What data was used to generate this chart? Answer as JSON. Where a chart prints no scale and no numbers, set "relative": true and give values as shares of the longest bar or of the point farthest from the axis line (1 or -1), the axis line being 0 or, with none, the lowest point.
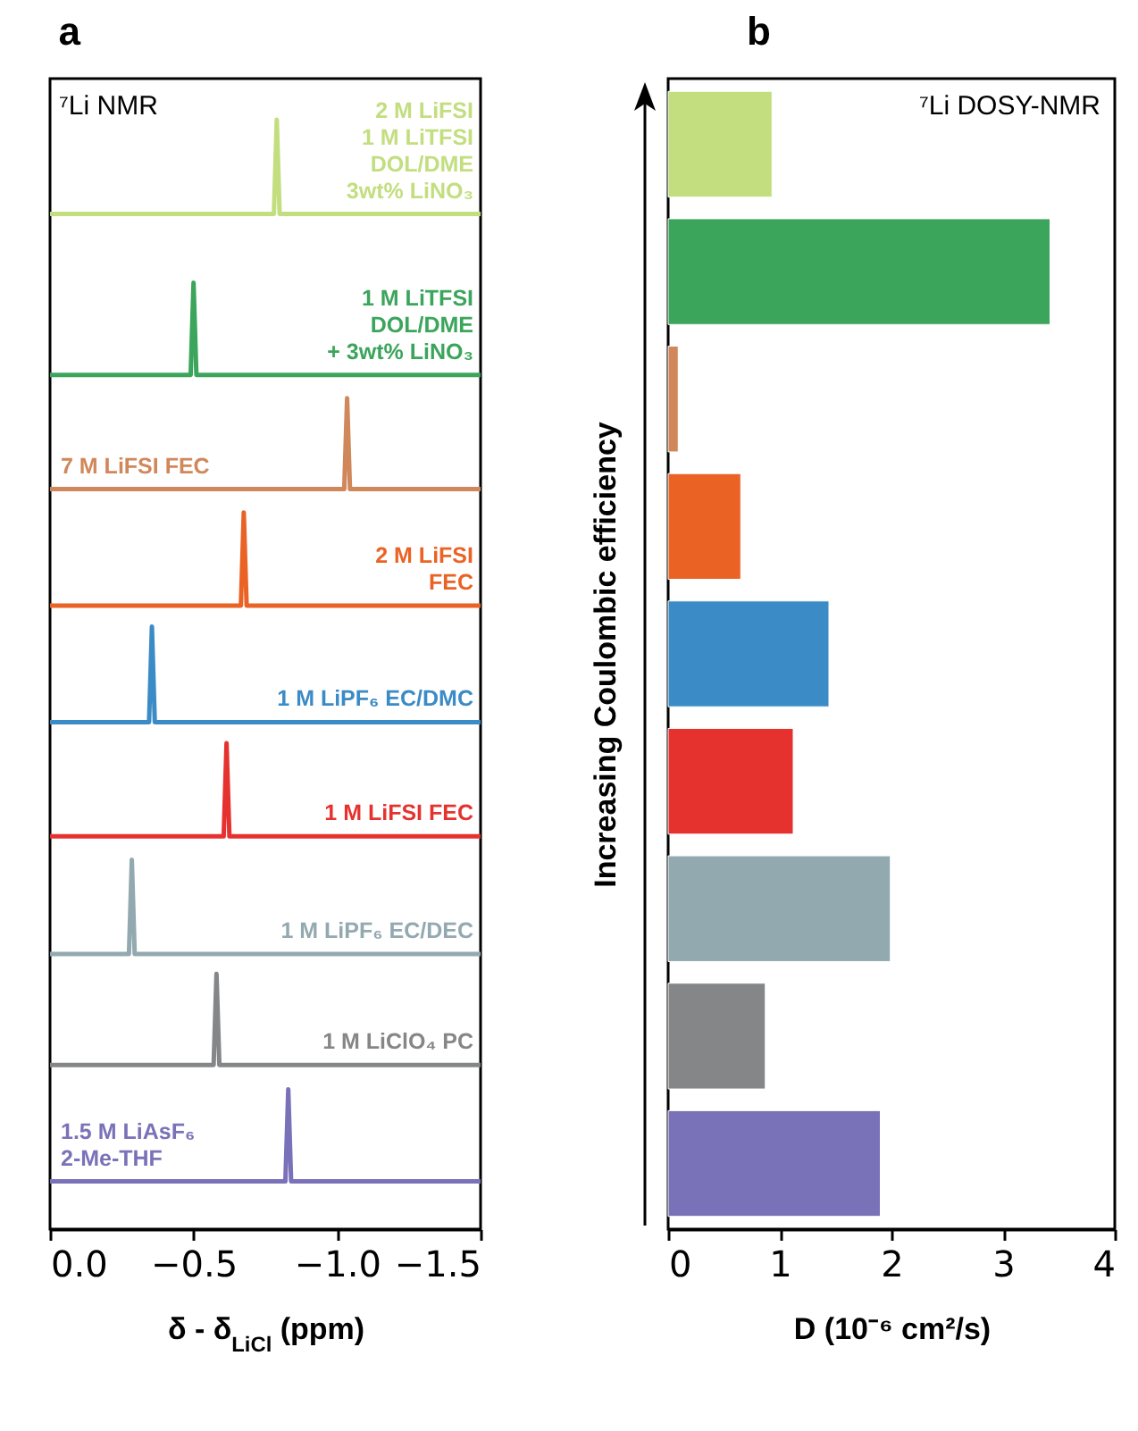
{
  "chart_data": [
    {
      "type": "line",
      "title": "a",
      "xlabel": "δ - δ$_{LiCl}$ (ppm)",
      "relative": true,
      "tick_labels": "x",
      "annotations": [
        "⁷Li NMR"
      ],
      "xlim": [
        0,
        -1.5
      ],
      "xticks": [
        {
          "value": 0,
          "label": "0.0"
        },
        {
          "value": -0.5,
          "label": "−0.5"
        },
        {
          "value": -1,
          "label": "−1.0"
        },
        {
          "value": -1.5,
          "label": "−1.5"
        }
      ],
      "series": [
        {
          "name": "2 M LiFSI\n1 M LiTFSI\nDOL/DME\n3wt% LiNO₃",
          "color": "#c3de7f",
          "x": [
            0,
            -0.78,
            -0.79,
            -0.8,
            -1.5
          ],
          "values": [
            0.915,
            0.915,
            1.0,
            0.915,
            0.915
          ]
        },
        {
          "name": "1 M LiTFSI\nDOL/DME\n+ 3wt% LiNO₃",
          "color": "#3ba55c",
          "x": [
            0,
            -0.49,
            -0.5,
            -0.51,
            -1.5
          ],
          "values": [
            0.77,
            0.77,
            0.853,
            0.77,
            0.77
          ]
        },
        {
          "name": "7 M LiFSI FEC",
          "color": "#d0875a",
          "x": [
            0,
            -1.025,
            -1.035,
            -1.045,
            -1.5
          ],
          "values": [
            0.667,
            0.667,
            0.749,
            0.667,
            0.667
          ]
        },
        {
          "name": "2 M LiFSI\nFEC",
          "color": "#ea6325",
          "x": [
            0,
            -0.665,
            -0.675,
            -0.685,
            -1.5
          ],
          "values": [
            0.562,
            0.562,
            0.646,
            0.562,
            0.562
          ]
        },
        {
          "name": "1 M LiPF₆ EC/DMC",
          "color": "#3a8bc6",
          "x": [
            0,
            -0.345,
            -0.355,
            -0.365,
            -1.5
          ],
          "values": [
            0.457,
            0.457,
            0.543,
            0.457,
            0.457
          ]
        },
        {
          "name": "1 M LiFSI FEC",
          "color": "#e6322f",
          "x": [
            0,
            -0.605,
            -0.615,
            -0.625,
            -1.5
          ],
          "values": [
            0.354,
            0.354,
            0.438,
            0.354,
            0.354
          ]
        },
        {
          "name": "1 M LiPF₆ EC/DEC",
          "color": "#93a9b0",
          "x": [
            0,
            -0.275,
            -0.285,
            -0.295,
            -1.5
          ],
          "values": [
            0.248,
            0.248,
            0.333,
            0.248,
            0.248
          ]
        },
        {
          "name": "1 M LiClO₄ PC",
          "color": "#858688",
          "x": [
            0,
            -0.57,
            -0.58,
            -0.59,
            -1.5
          ],
          "values": [
            0.148,
            0.148,
            0.23,
            0.148,
            0.148
          ]
        },
        {
          "name": "1.5 M LiAsF₆\n2-Me-THF",
          "color": "#7a72b8",
          "x": [
            0,
            -0.82,
            -0.83,
            -0.84,
            -1.5
          ],
          "values": [
            0.043,
            0.043,
            0.126,
            0.043,
            0.043
          ]
        }
      ]
    },
    {
      "type": "bar",
      "orientation": "horizontal",
      "title": "b",
      "xlabel": "D (10⁻⁶ cm²/s)",
      "ylabel": "Increasing Coulombic efficiency",
      "tick_labels": "x",
      "annotations": [
        "⁷Li DOSY-NMR"
      ],
      "categories": [
        null,
        null,
        null,
        null,
        null,
        null,
        null,
        null,
        null
      ],
      "values": [
        0.93,
        3.42,
        0.09,
        0.65,
        1.44,
        1.12,
        1.99,
        0.87,
        1.9
      ],
      "colors": [
        "#c3de7f",
        "#3ba55c",
        "#d0875a",
        "#ea6325",
        "#3a8bc6",
        "#e6322f",
        "#93a9b0",
        "#858688",
        "#7a72b8"
      ],
      "xlim": [
        0,
        4
      ],
      "xticks": [
        0,
        1,
        2,
        3,
        4
      ]
    }
  ]
}
